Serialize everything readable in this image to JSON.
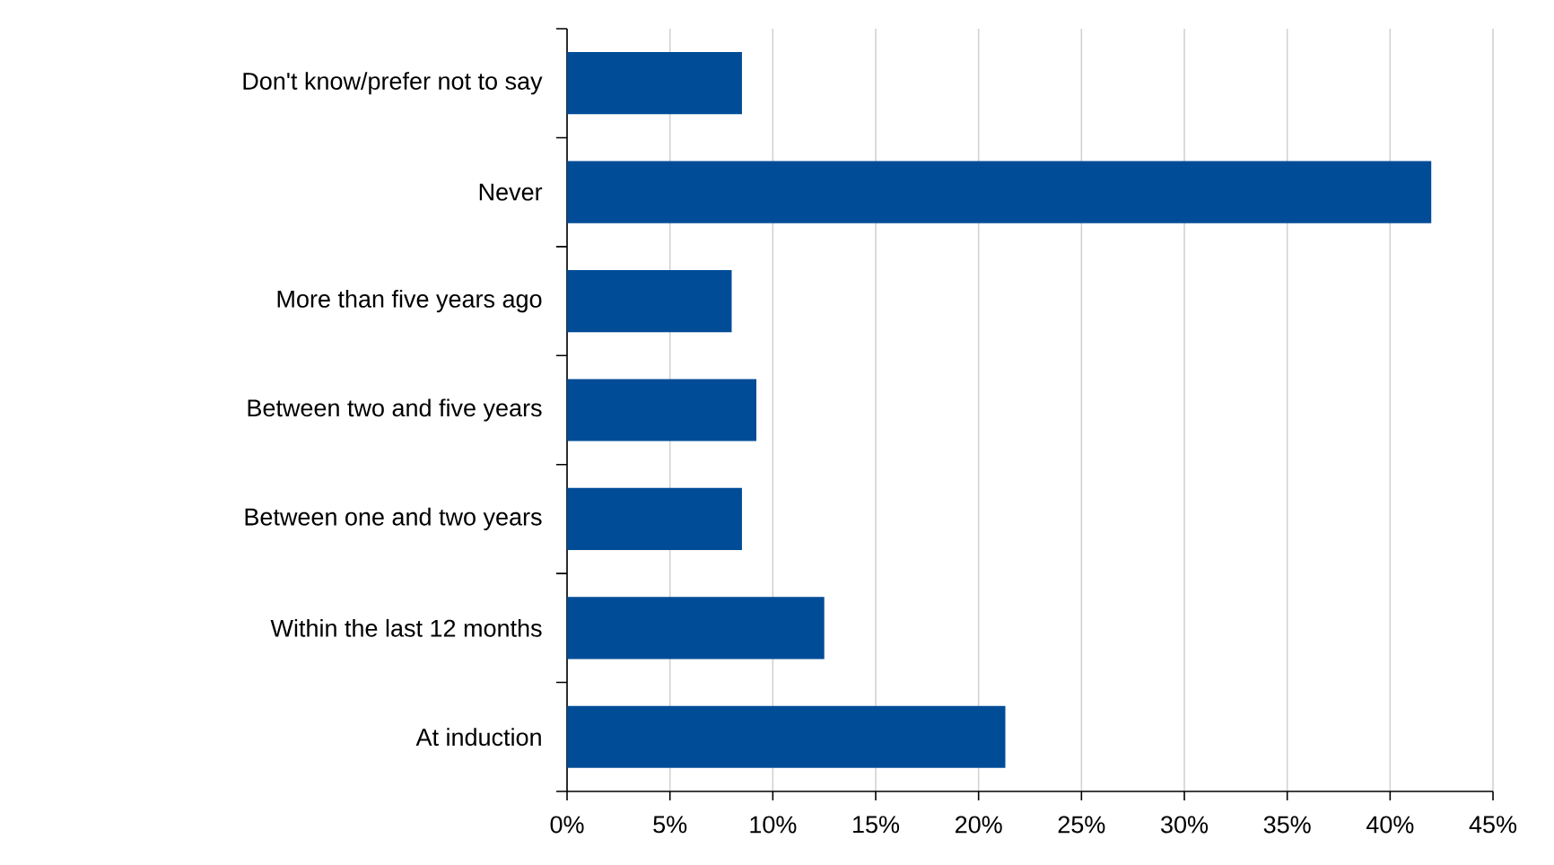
{
  "chart_data": {
    "type": "bar",
    "orientation": "horizontal",
    "categories": [
      "Don't know/prefer not to say",
      "Never",
      "More than five years ago",
      "Between two and five years",
      "Between one and two years",
      "Within the last 12 months",
      "At induction"
    ],
    "values": [
      8.5,
      42.0,
      8.0,
      9.2,
      8.5,
      12.5,
      21.3
    ],
    "color": "#004c97",
    "xlim": [
      0,
      45
    ],
    "xticks": [
      {
        "value": 0,
        "label": "0%"
      },
      {
        "value": 5,
        "label": "5%"
      },
      {
        "value": 10,
        "label": "10%"
      },
      {
        "value": 15,
        "label": "15%"
      },
      {
        "value": 20,
        "label": "20%"
      },
      {
        "value": 25,
        "label": "25%"
      },
      {
        "value": 30,
        "label": "30%"
      },
      {
        "value": 35,
        "label": "35%"
      },
      {
        "value": 40,
        "label": "40%"
      },
      {
        "value": 45,
        "label": "45%"
      }
    ],
    "grid": "x"
  }
}
